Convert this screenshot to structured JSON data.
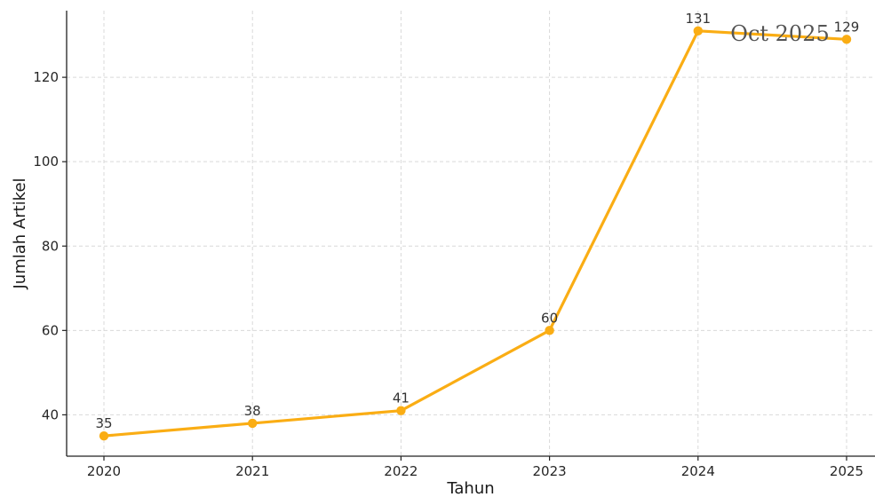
{
  "chart_data": {
    "type": "line",
    "title": "",
    "xlabel": "Tahun",
    "ylabel": "Jumlah Artikel",
    "categories": [
      "2020",
      "2021",
      "2022",
      "2023",
      "2024",
      "2025"
    ],
    "series": [
      {
        "values": [
          35,
          38,
          41,
          60,
          131,
          129
        ]
      }
    ],
    "data_labels": [
      "35",
      "38",
      "41",
      "60",
      "131",
      "129"
    ],
    "y_ticks": [
      40,
      60,
      80,
      100,
      120
    ],
    "ylim": [
      30.2,
      135.8
    ],
    "grid": true,
    "legend": "none",
    "line_color": "#FAAD14",
    "annotation": "Oct 2025"
  }
}
